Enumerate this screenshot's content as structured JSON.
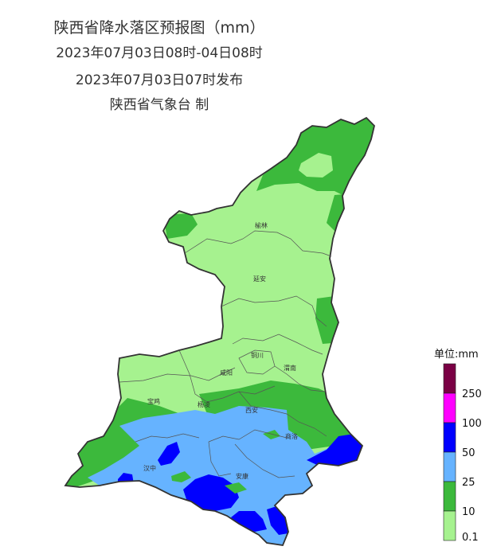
{
  "title": {
    "line1": "陕西省降水落区预报图（mm）",
    "line2": "2023年07月03日08时-04日08时",
    "line3": "2023年07月03日07时发布",
    "line4": "陕西省气象台 制"
  },
  "cities": [
    "榆林",
    "延安",
    "铜川",
    "咸阳",
    "渭南",
    "宝鸡",
    "杨凌",
    "西安",
    "商洛",
    "汉中",
    "安康"
  ],
  "legend": {
    "title": "单位:mm",
    "labels": [
      "250",
      "100",
      "50",
      "25",
      "10",
      "0.1"
    ],
    "colors": {
      "c0": "#7a0044",
      "c1": "#ff00ff",
      "c2": "#0000ff",
      "c3": "#66b3ff",
      "c4": "#3cb93c",
      "c5": "#a6f28f"
    }
  }
}
